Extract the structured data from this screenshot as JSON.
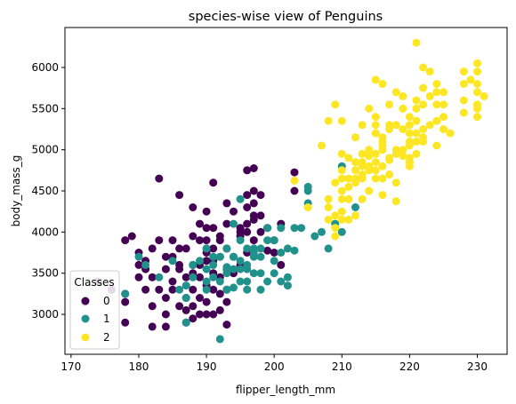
{
  "chart_data": {
    "type": "scatter",
    "title": "species-wise view of Penguins",
    "xlabel": "flipper_length_mm",
    "ylabel": "body_mass_g",
    "xlim": [
      169.1,
      234.4
    ],
    "ylim": [
      2515,
      6485
    ],
    "xticks": [
      170,
      180,
      190,
      200,
      210,
      220,
      230
    ],
    "yticks": [
      3000,
      3500,
      4000,
      4500,
      5000,
      5500,
      6000
    ],
    "grid": false,
    "legend": {
      "title": "Classes",
      "placement": "lower-left",
      "entries": [
        {
          "label": "0",
          "color": "#440154"
        },
        {
          "label": "1",
          "color": "#21918c"
        },
        {
          "label": "2",
          "color": "#fde725"
        }
      ]
    },
    "series": [
      {
        "class": "0",
        "color": "#440154",
        "points": [
          [
            172,
            3150
          ],
          [
            174,
            3400
          ],
          [
            176,
            3300
          ],
          [
            178,
            3900
          ],
          [
            178,
            2900
          ],
          [
            178,
            3150
          ],
          [
            178,
            3250
          ],
          [
            179,
            3950
          ],
          [
            180,
            3450
          ],
          [
            180,
            3600
          ],
          [
            180,
            3750
          ],
          [
            181,
            3550
          ],
          [
            181,
            3650
          ],
          [
            181,
            3300
          ],
          [
            182,
            3800
          ],
          [
            182,
            3450
          ],
          [
            182,
            3100
          ],
          [
            182,
            2850
          ],
          [
            183,
            3900
          ],
          [
            183,
            3300
          ],
          [
            183,
            4650
          ],
          [
            184,
            3700
          ],
          [
            184,
            3550
          ],
          [
            184,
            3200
          ],
          [
            184,
            3000
          ],
          [
            184,
            2850
          ],
          [
            185,
            3400
          ],
          [
            185,
            3300
          ],
          [
            185,
            3700
          ],
          [
            185,
            3900
          ],
          [
            186,
            4450
          ],
          [
            186,
            3800
          ],
          [
            186,
            3550
          ],
          [
            186,
            3100
          ],
          [
            186,
            3600
          ],
          [
            187,
            3450
          ],
          [
            187,
            3050
          ],
          [
            187,
            3200
          ],
          [
            187,
            2900
          ],
          [
            187,
            3800
          ],
          [
            188,
            3950
          ],
          [
            188,
            3300
          ],
          [
            188,
            3600
          ],
          [
            188,
            4300
          ],
          [
            188,
            3500
          ],
          [
            188,
            3100
          ],
          [
            189,
            3900
          ],
          [
            189,
            3600
          ],
          [
            189,
            3450
          ],
          [
            189,
            3200
          ],
          [
            189,
            4100
          ],
          [
            189,
            3000
          ],
          [
            190,
            4250
          ],
          [
            190,
            3900
          ],
          [
            190,
            3650
          ],
          [
            190,
            3350
          ],
          [
            190,
            3750
          ],
          [
            190,
            3000
          ],
          [
            190,
            3800
          ],
          [
            190,
            3150
          ],
          [
            190,
            4050
          ],
          [
            191,
            3800
          ],
          [
            191,
            3500
          ],
          [
            191,
            3300
          ],
          [
            191,
            3650
          ],
          [
            191,
            3000
          ],
          [
            191,
            4600
          ],
          [
            191,
            4050
          ],
          [
            192,
            3700
          ],
          [
            192,
            3450
          ],
          [
            192,
            3250
          ],
          [
            192,
            3900
          ],
          [
            192,
            3950
          ],
          [
            193,
            4100
          ],
          [
            193,
            3800
          ],
          [
            193,
            3550
          ],
          [
            193,
            3300
          ],
          [
            193,
            3150
          ],
          [
            193,
            4350
          ],
          [
            194,
            4250
          ],
          [
            194,
            3700
          ],
          [
            194,
            3500
          ],
          [
            195,
            4000
          ],
          [
            195,
            3950
          ],
          [
            195,
            3600
          ],
          [
            195,
            4050
          ],
          [
            196,
            4300
          ],
          [
            196,
            4750
          ],
          [
            196,
            4100
          ],
          [
            196,
            4000
          ],
          [
            196,
            4450
          ],
          [
            196,
            3750
          ],
          [
            197,
            4500
          ],
          [
            197,
            4775
          ],
          [
            197,
            4150
          ],
          [
            197,
            4350
          ],
          [
            197,
            4200
          ],
          [
            197,
            3900
          ],
          [
            198,
            4450
          ],
          [
            198,
            4000
          ],
          [
            198,
            4200
          ],
          [
            199,
            4050
          ],
          [
            199,
            3775
          ],
          [
            200,
            3900
          ],
          [
            200,
            3750
          ],
          [
            201,
            4100
          ],
          [
            201,
            3600
          ],
          [
            203,
            4725
          ],
          [
            203,
            4500
          ],
          [
            192,
            3050
          ],
          [
            188,
            2950
          ],
          [
            193,
            2875
          ]
        ]
      },
      {
        "class": "1",
        "color": "#21918c",
        "points": [
          [
            178,
            3250
          ],
          [
            180,
            3700
          ],
          [
            181,
            3600
          ],
          [
            183,
            3450
          ],
          [
            185,
            3650
          ],
          [
            186,
            3300
          ],
          [
            187,
            3350
          ],
          [
            187,
            2900
          ],
          [
            187,
            3200
          ],
          [
            188,
            3450
          ],
          [
            188,
            3600
          ],
          [
            189,
            3650
          ],
          [
            190,
            3550
          ],
          [
            190,
            3400
          ],
          [
            190,
            3300
          ],
          [
            190,
            3800
          ],
          [
            191,
            3600
          ],
          [
            191,
            3450
          ],
          [
            191,
            3700
          ],
          [
            192,
            3700
          ],
          [
            192,
            2700
          ],
          [
            192,
            3400
          ],
          [
            193,
            3550
          ],
          [
            193,
            3800
          ],
          [
            193,
            3500
          ],
          [
            193,
            3300
          ],
          [
            194,
            3550
          ],
          [
            194,
            4100
          ],
          [
            194,
            3700
          ],
          [
            195,
            3550
          ],
          [
            195,
            3900
          ],
          [
            195,
            3400
          ],
          [
            195,
            3650
          ],
          [
            195,
            4400
          ],
          [
            196,
            3550
          ],
          [
            196,
            3800
          ],
          [
            196,
            3400
          ],
          [
            196,
            3600
          ],
          [
            196,
            3300
          ],
          [
            197,
            3700
          ],
          [
            197,
            3500
          ],
          [
            197,
            3750
          ],
          [
            197,
            3800
          ],
          [
            198,
            3800
          ],
          [
            198,
            3500
          ],
          [
            198,
            3700
          ],
          [
            198,
            3300
          ],
          [
            199,
            3400
          ],
          [
            199,
            4050
          ],
          [
            199,
            3900
          ],
          [
            200,
            3500
          ],
          [
            200,
            3650
          ],
          [
            200,
            3900
          ],
          [
            201,
            3750
          ],
          [
            201,
            3400
          ],
          [
            201,
            4050
          ],
          [
            202,
            3800
          ],
          [
            202,
            3450
          ],
          [
            202,
            3350
          ],
          [
            203,
            4050
          ],
          [
            203,
            3775
          ],
          [
            204,
            4050
          ],
          [
            205,
            4350
          ],
          [
            205,
            4550
          ],
          [
            205,
            4500
          ],
          [
            206,
            3950
          ],
          [
            207,
            4000
          ],
          [
            208,
            3800
          ],
          [
            209,
            4100
          ],
          [
            210,
            4800
          ],
          [
            210,
            4000
          ],
          [
            212,
            4300
          ],
          [
            193,
            3575
          ],
          [
            194,
            3325
          ]
        ]
      },
      {
        "class": "2",
        "color": "#fde725",
        "points": [
          [
            203,
            4625
          ],
          [
            205,
            4300
          ],
          [
            207,
            5050
          ],
          [
            208,
            4400
          ],
          [
            208,
            5350
          ],
          [
            208,
            4300
          ],
          [
            208,
            4150
          ],
          [
            209,
            4200
          ],
          [
            209,
            4050
          ],
          [
            209,
            4600
          ],
          [
            209,
            5550
          ],
          [
            210,
            4400
          ],
          [
            210,
            4650
          ],
          [
            210,
            4750
          ],
          [
            210,
            4250
          ],
          [
            210,
            4950
          ],
          [
            210,
            5350
          ],
          [
            210,
            4500
          ],
          [
            210,
            4150
          ],
          [
            211,
            4650
          ],
          [
            211,
            4400
          ],
          [
            211,
            4900
          ],
          [
            211,
            4550
          ],
          [
            211,
            4150
          ],
          [
            212,
            4850
          ],
          [
            212,
            5150
          ],
          [
            212,
            4600
          ],
          [
            212,
            4650
          ],
          [
            212,
            4750
          ],
          [
            213,
            5300
          ],
          [
            213,
            4800
          ],
          [
            213,
            4400
          ],
          [
            213,
            4950
          ],
          [
            213,
            4650
          ],
          [
            213,
            4850
          ],
          [
            213,
            4700
          ],
          [
            214,
            4750
          ],
          [
            214,
            5000
          ],
          [
            214,
            4500
          ],
          [
            214,
            5500
          ],
          [
            214,
            4925
          ],
          [
            215,
            4850
          ],
          [
            215,
            5200
          ],
          [
            215,
            5400
          ],
          [
            215,
            4950
          ],
          [
            215,
            4650
          ],
          [
            215,
            5850
          ],
          [
            215,
            5300
          ],
          [
            215,
            4750
          ],
          [
            216,
            5000
          ],
          [
            216,
            4650
          ],
          [
            216,
            5150
          ],
          [
            216,
            4800
          ],
          [
            216,
            5800
          ],
          [
            216,
            5100
          ],
          [
            216,
            5050
          ],
          [
            217,
            5250
          ],
          [
            217,
            4900
          ],
          [
            217,
            4875
          ],
          [
            217,
            5550
          ],
          [
            217,
            4700
          ],
          [
            217,
            5300
          ],
          [
            218,
            4950
          ],
          [
            218,
            5300
          ],
          [
            218,
            4600
          ],
          [
            218,
            5700
          ],
          [
            218,
            4375
          ],
          [
            218,
            5000
          ],
          [
            219,
            5250
          ],
          [
            219,
            5000
          ],
          [
            219,
            5650
          ],
          [
            219,
            5500
          ],
          [
            219,
            4925
          ],
          [
            220,
            5200
          ],
          [
            220,
            4800
          ],
          [
            220,
            5300
          ],
          [
            220,
            5400
          ],
          [
            220,
            4900
          ],
          [
            220,
            5050
          ],
          [
            220,
            4850
          ],
          [
            221,
            5350
          ],
          [
            221,
            6300
          ],
          [
            221,
            5100
          ],
          [
            221,
            5200
          ],
          [
            221,
            4950
          ],
          [
            221,
            5500
          ],
          [
            221,
            5600
          ],
          [
            222,
            5250
          ],
          [
            222,
            5750
          ],
          [
            222,
            6000
          ],
          [
            222,
            5550
          ],
          [
            222,
            5150
          ],
          [
            223,
            5650
          ],
          [
            223,
            5300
          ],
          [
            223,
            5950
          ],
          [
            224,
            5800
          ],
          [
            224,
            5700
          ],
          [
            224,
            5550
          ],
          [
            224,
            5350
          ],
          [
            224,
            5050
          ],
          [
            225,
            5700
          ],
          [
            225,
            5550
          ],
          [
            225,
            5400
          ],
          [
            225,
            5250
          ],
          [
            226,
            5200
          ],
          [
            228,
            5450
          ],
          [
            228,
            5800
          ],
          [
            228,
            5600
          ],
          [
            228,
            5950
          ],
          [
            229,
            5850
          ],
          [
            230,
            5800
          ],
          [
            230,
            5700
          ],
          [
            230,
            5550
          ],
          [
            230,
            6050
          ],
          [
            230,
            5500
          ],
          [
            230,
            5400
          ],
          [
            230,
            5950
          ],
          [
            231,
            5650
          ],
          [
            212,
            4200
          ],
          [
            209,
            3950
          ],
          [
            216,
            4450
          ],
          [
            214,
            4800
          ],
          [
            220,
            5100
          ],
          [
            222,
            5100
          ]
        ]
      }
    ]
  }
}
